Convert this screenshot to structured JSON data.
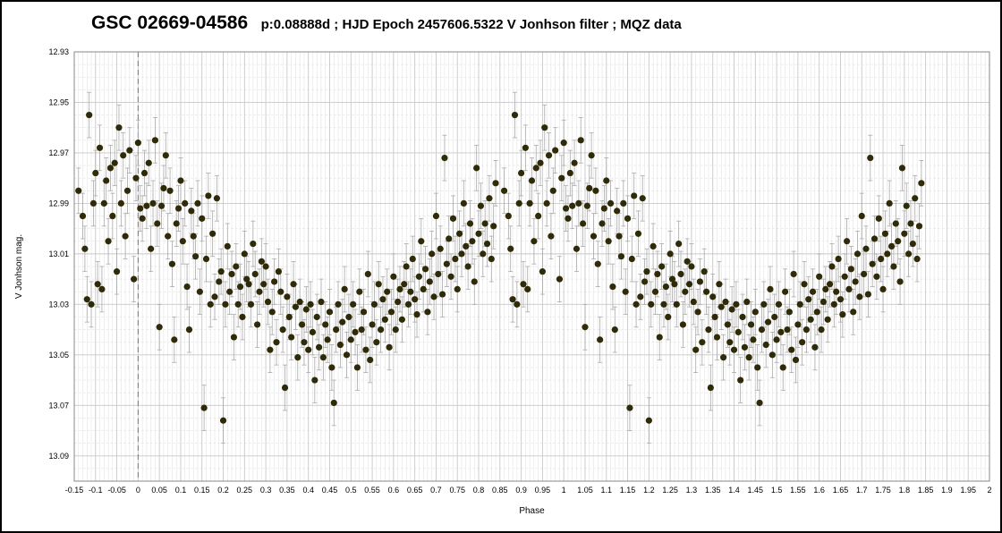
{
  "chart_data": {
    "type": "scatter",
    "title": "GSC 02669-04586",
    "subtitle": "p:0.08888d  ;  HJD Epoch 2457606.5322  V Jonhson filter  ; MQZ data",
    "xlabel": "Phase",
    "ylabel": "V Jonhson mag.",
    "xlim": [
      -0.15,
      2.0
    ],
    "ylim": [
      12.93,
      13.1
    ],
    "y_inverted": true,
    "grid": true,
    "x_ticks": [
      -0.15,
      -0.1,
      -0.05,
      0,
      0.05,
      0.1,
      0.15,
      0.2,
      0.25,
      0.3,
      0.35,
      0.4,
      0.45,
      0.5,
      0.55,
      0.6,
      0.65,
      0.7,
      0.75,
      0.8,
      0.85,
      0.9,
      0.95,
      1,
      1.05,
      1.1,
      1.15,
      1.2,
      1.25,
      1.3,
      1.35,
      1.4,
      1.45,
      1.5,
      1.55,
      1.6,
      1.65,
      1.7,
      1.75,
      1.8,
      1.85,
      1.9,
      1.95,
      2
    ],
    "x_tick_labels": [
      "-0.15",
      "-0.1",
      "-0.05",
      "0",
      "0.05",
      "0.1",
      "0.15",
      "0.2",
      "0.25",
      "0.3",
      "0.35",
      "0.4",
      "0.45",
      "0.5",
      "0.55",
      "0.6",
      "0.65",
      "0.7",
      "0.75",
      "0.8",
      "0.85",
      "0.9",
      "0.95",
      "1",
      "1.05",
      "1.1",
      "1.15",
      "1.2",
      "1.25",
      "1.3",
      "1.35",
      "1.4",
      "1.45",
      "1.5",
      "1.55",
      "1.6",
      "1.65",
      "1.7",
      "1.75",
      "1.8",
      "1.85",
      "1.9",
      "1.95",
      "2"
    ],
    "y_ticks": [
      12.93,
      12.95,
      12.97,
      12.99,
      13.01,
      13.03,
      13.05,
      13.07,
      13.09
    ],
    "y_tick_labels": [
      "12.93",
      "12.95",
      "12.97",
      "12.99",
      "13.01",
      "13.03",
      "13.05",
      "13.07",
      "13.09"
    ],
    "marker_color": "#2f2a08",
    "errorbar_color": "#a9a9a9",
    "grid_color": "#c8c8c8",
    "series": [
      {
        "values": [
          [
            -0.14,
            12.985
          ],
          [
            -0.13,
            12.995
          ],
          [
            -0.125,
            13.008
          ],
          [
            -0.12,
            13.028
          ],
          [
            -0.115,
            12.955
          ],
          [
            -0.11,
            13.03
          ],
          [
            -0.105,
            12.99
          ],
          [
            -0.1,
            12.978
          ],
          [
            -0.095,
            13.022
          ],
          [
            -0.09,
            12.968
          ],
          [
            -0.085,
            13.024
          ],
          [
            -0.08,
            12.99
          ],
          [
            -0.075,
            12.981
          ],
          [
            -0.07,
            13.005
          ],
          [
            -0.065,
            12.976
          ],
          [
            -0.06,
            12.995
          ],
          [
            -0.055,
            12.974
          ],
          [
            -0.05,
            13.017
          ],
          [
            -0.045,
            12.96
          ],
          [
            -0.04,
            12.99
          ],
          [
            -0.035,
            12.971
          ],
          [
            -0.03,
            13.003
          ],
          [
            -0.025,
            12.985
          ],
          [
            -0.02,
            12.969
          ],
          [
            -0.01,
            13.02
          ],
          [
            -0.005,
            12.98
          ],
          [
            0.0,
            12.966
          ],
          [
            0.005,
            12.992
          ],
          [
            0.01,
            12.996
          ],
          [
            0.015,
            12.978
          ],
          [
            0.02,
            12.991
          ],
          [
            0.025,
            12.974
          ],
          [
            0.03,
            13.008
          ],
          [
            0.035,
            12.99
          ],
          [
            0.04,
            12.965
          ],
          [
            0.045,
            12.998
          ],
          [
            0.05,
            13.039
          ],
          [
            0.055,
            12.991
          ],
          [
            0.06,
            12.984
          ],
          [
            0.065,
            12.971
          ],
          [
            0.07,
            13.003
          ],
          [
            0.075,
            12.985
          ],
          [
            0.08,
            13.014
          ],
          [
            0.085,
            13.044
          ],
          [
            0.09,
            12.998
          ],
          [
            0.095,
            12.992
          ],
          [
            0.1,
            12.981
          ],
          [
            0.105,
            13.005
          ],
          [
            0.11,
            12.99
          ],
          [
            0.115,
            13.023
          ],
          [
            0.12,
            13.04
          ],
          [
            0.125,
            12.993
          ],
          [
            0.13,
            13.003
          ],
          [
            0.135,
            13.011
          ],
          [
            0.14,
            12.99
          ],
          [
            0.145,
            13.025
          ],
          [
            0.15,
            12.996
          ],
          [
            0.155,
            13.071
          ],
          [
            0.16,
            13.012
          ],
          [
            0.165,
            12.987
          ],
          [
            0.17,
            13.03
          ],
          [
            0.175,
            13.002
          ],
          [
            0.18,
            13.027
          ],
          [
            0.185,
            12.988
          ],
          [
            0.19,
            13.021
          ],
          [
            0.195,
            13.017
          ],
          [
            0.2,
            13.076
          ],
          [
            0.205,
            13.03
          ],
          [
            0.21,
            13.007
          ],
          [
            0.215,
            13.025
          ],
          [
            0.22,
            13.018
          ],
          [
            0.225,
            13.043
          ],
          [
            0.23,
            13.015
          ],
          [
            0.235,
            13.03
          ],
          [
            0.24,
            13.023
          ],
          [
            0.245,
            13.035
          ],
          [
            0.25,
            13.01
          ],
          [
            0.255,
            13.02
          ],
          [
            0.26,
            13.022
          ],
          [
            0.265,
            13.03
          ],
          [
            0.27,
            13.006
          ],
          [
            0.275,
            13.018
          ],
          [
            0.28,
            13.038
          ],
          [
            0.285,
            13.025
          ],
          [
            0.29,
            13.013
          ],
          [
            0.295,
            13.022
          ],
          [
            0.3,
            13.015
          ],
          [
            0.305,
            13.029
          ],
          [
            0.31,
            13.048
          ],
          [
            0.315,
            13.033
          ],
          [
            0.32,
            13.021
          ],
          [
            0.325,
            13.045
          ],
          [
            0.33,
            13.017
          ],
          [
            0.335,
            13.025
          ],
          [
            0.34,
            13.04
          ],
          [
            0.345,
            13.063
          ],
          [
            0.35,
            13.027
          ],
          [
            0.355,
            13.035
          ],
          [
            0.36,
            13.043
          ],
          [
            0.365,
            13.022
          ],
          [
            0.37,
            13.031
          ],
          [
            0.375,
            13.051
          ],
          [
            0.38,
            13.029
          ],
          [
            0.385,
            13.038
          ],
          [
            0.39,
            13.045
          ],
          [
            0.395,
            13.032
          ],
          [
            0.4,
            13.048
          ],
          [
            0.405,
            13.03
          ],
          [
            0.41,
            13.041
          ],
          [
            0.415,
            13.06
          ],
          [
            0.42,
            13.035
          ],
          [
            0.425,
            13.047
          ],
          [
            0.43,
            13.029
          ],
          [
            0.435,
            13.051
          ],
          [
            0.44,
            13.038
          ],
          [
            0.445,
            13.044
          ],
          [
            0.45,
            13.033
          ],
          [
            0.455,
            13.055
          ],
          [
            0.46,
            13.069
          ],
          [
            0.465,
            13.04
          ],
          [
            0.47,
            13.03
          ],
          [
            0.475,
            13.046
          ],
          [
            0.48,
            13.037
          ],
          [
            0.485,
            13.024
          ],
          [
            0.49,
            13.05
          ],
          [
            0.495,
            13.035
          ],
          [
            0.5,
            13.044
          ],
          [
            0.505,
            13.03
          ],
          [
            0.51,
            13.041
          ],
          [
            0.515,
            13.055
          ],
          [
            0.52,
            13.025
          ],
          [
            0.525,
            13.04
          ],
          [
            0.53,
            13.033
          ],
          [
            0.535,
            13.048
          ],
          [
            0.54,
            13.018
          ],
          [
            0.545,
            13.052
          ],
          [
            0.55,
            13.038
          ],
          [
            0.555,
            13.03
          ],
          [
            0.56,
            13.045
          ],
          [
            0.565,
            13.022
          ],
          [
            0.57,
            13.04
          ],
          [
            0.575,
            13.028
          ],
          [
            0.58,
            13.036
          ],
          [
            0.585,
            13.025
          ],
          [
            0.59,
            13.047
          ],
          [
            0.595,
            13.033
          ],
          [
            0.6,
            13.019
          ],
          [
            0.605,
            13.04
          ],
          [
            0.61,
            13.029
          ],
          [
            0.615,
            13.024
          ],
          [
            0.62,
            13.036
          ],
          [
            0.625,
            13.022
          ],
          [
            0.63,
            13.015
          ],
          [
            0.635,
            13.03
          ],
          [
            0.64,
            13.025
          ],
          [
            0.645,
            13.012
          ],
          [
            0.65,
            13.028
          ],
          [
            0.655,
            13.034
          ],
          [
            0.66,
            13.019
          ],
          [
            0.665,
            13.005
          ],
          [
            0.67,
            13.024
          ],
          [
            0.675,
            13.016
          ],
          [
            0.68,
            13.033
          ],
          [
            0.685,
            13.021
          ],
          [
            0.69,
            13.01
          ],
          [
            0.695,
            13.027
          ],
          [
            0.7,
            12.995
          ],
          [
            0.705,
            13.018
          ],
          [
            0.71,
            13.008
          ],
          [
            0.715,
            13.026
          ],
          [
            0.72,
            12.972
          ],
          [
            0.725,
            13.014
          ],
          [
            0.73,
            13.004
          ],
          [
            0.735,
            13.019
          ],
          [
            0.74,
            12.996
          ],
          [
            0.745,
            13.012
          ],
          [
            0.75,
            13.024
          ],
          [
            0.755,
            13.002
          ],
          [
            0.76,
            13.01
          ],
          [
            0.765,
            12.99
          ],
          [
            0.77,
            13.007
          ],
          [
            0.775,
            13.015
          ],
          [
            0.78,
            12.998
          ],
          [
            0.785,
            13.005
          ],
          [
            0.79,
            13.021
          ],
          [
            0.795,
            12.976
          ],
          [
            0.8,
            13.002
          ],
          [
            0.805,
            12.991
          ],
          [
            0.81,
            13.01
          ],
          [
            0.815,
            12.998
          ],
          [
            0.82,
            13.006
          ],
          [
            0.825,
            12.988
          ],
          [
            0.83,
            13.012
          ],
          [
            0.835,
            12.999
          ],
          [
            0.84,
            12.982
          ]
        ]
      }
    ]
  }
}
